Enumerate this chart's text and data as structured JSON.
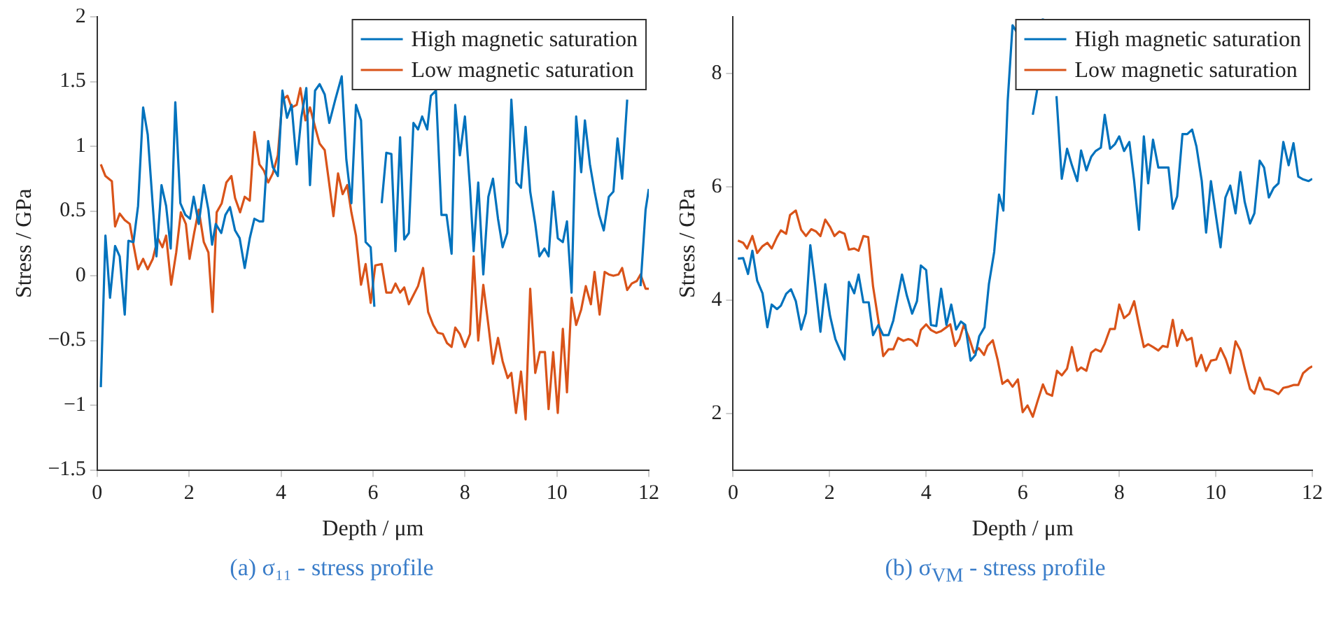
{
  "chart_data": [
    {
      "type": "line",
      "xlabel": "Depth / μm",
      "ylabel": "Stress / GPa",
      "xlim": [
        0,
        12
      ],
      "xticks": [
        0,
        2,
        4,
        6,
        8,
        10,
        12
      ],
      "ylim": [
        -1.5,
        2
      ],
      "yticks": [
        -1.5,
        -1,
        -0.5,
        0,
        0.5,
        1,
        1.5,
        2
      ],
      "legend": "top right",
      "marker": "none",
      "annotations": [
        "(a) σ₁₁ - stress profile"
      ],
      "series": [
        {
          "name": "High magnetic saturation",
          "color": "#0072bd",
          "x": [
            0.08,
            0.18,
            0.28,
            0.39,
            0.49,
            0.6,
            0.68,
            0.79,
            0.89,
            1.0,
            1.1,
            1.21,
            1.29,
            1.4,
            1.5,
            1.6,
            1.7,
            1.81,
            1.92,
            2.02,
            2.1,
            2.21,
            2.32,
            2.42,
            2.5,
            2.58,
            2.7,
            2.79,
            2.89,
            3.0,
            3.1,
            3.21,
            3.32,
            3.42,
            3.53,
            3.61,
            3.72,
            3.82,
            3.93,
            4.03,
            4.13,
            4.23,
            4.34,
            4.44,
            4.55,
            4.63,
            4.74,
            4.84,
            4.95,
            5.05,
            5.18,
            5.32,
            5.42,
            5.53,
            5.63,
            5.74,
            5.84,
            5.95,
            6.03,
            6.08,
            6.19,
            6.29,
            6.4,
            6.49,
            6.59,
            6.68,
            6.78,
            6.88,
            6.98,
            7.07,
            7.18,
            7.26,
            7.37,
            7.49,
            7.6,
            7.71,
            7.79,
            7.89,
            8.0,
            8.11,
            8.19,
            8.29,
            8.4,
            8.51,
            8.61,
            8.72,
            8.82,
            8.92,
            9.01,
            9.12,
            9.22,
            9.32,
            9.42,
            9.53,
            9.62,
            9.73,
            9.82,
            9.92,
            10.02,
            10.13,
            10.22,
            10.32,
            10.42,
            10.53,
            10.61,
            10.72,
            10.82,
            10.92,
            11.02,
            11.13,
            11.23,
            11.32,
            11.42,
            11.53,
            11.61,
            11.72,
            11.82,
            11.93,
            12.0
          ],
          "values": [
            -0.86,
            0.31,
            -0.17,
            0.23,
            0.15,
            -0.3,
            0.27,
            0.26,
            0.54,
            1.3,
            1.09,
            0.54,
            0.15,
            0.7,
            0.54,
            0.21,
            1.34,
            0.56,
            0.47,
            0.44,
            0.61,
            0.4,
            0.7,
            0.51,
            0.24,
            0.4,
            0.33,
            0.47,
            0.53,
            0.35,
            0.29,
            0.06,
            0.29,
            0.44,
            0.42,
            0.42,
            1.04,
            0.84,
            0.77,
            1.43,
            1.22,
            1.32,
            0.86,
            1.22,
            1.45,
            0.7,
            1.43,
            1.48,
            1.4,
            1.18,
            1.36,
            1.54,
            0.9,
            0.56,
            1.32,
            1.2,
            0.26,
            0.22,
            -0.24,
            null,
            0.56,
            0.95,
            0.94,
            0.19,
            1.07,
            0.28,
            0.33,
            1.18,
            1.13,
            1.23,
            1.13,
            1.39,
            1.43,
            0.47,
            0.47,
            0.17,
            1.32,
            0.93,
            1.23,
            0.68,
            0.19,
            0.72,
            0.01,
            0.61,
            0.75,
            0.44,
            0.22,
            0.33,
            1.36,
            0.72,
            0.68,
            1.15,
            0.65,
            0.4,
            0.15,
            0.21,
            0.15,
            0.65,
            0.29,
            0.26,
            0.42,
            -0.13,
            1.23,
            0.8,
            1.2,
            0.86,
            0.65,
            0.47,
            0.35,
            0.61,
            0.65,
            1.06,
            0.75,
            1.36,
            null,
            null,
            -0.08,
            0.51,
            0.67
          ]
        },
        {
          "name": "Low magnetic saturation",
          "color": "#d95319",
          "x": [
            0.08,
            0.18,
            0.32,
            0.39,
            0.49,
            0.6,
            0.71,
            0.79,
            0.89,
            1.0,
            1.1,
            1.21,
            1.32,
            1.42,
            1.5,
            1.61,
            1.72,
            1.82,
            1.93,
            2.01,
            2.11,
            2.21,
            2.32,
            2.42,
            2.51,
            2.6,
            2.71,
            2.81,
            2.92,
            3.0,
            3.11,
            3.21,
            3.32,
            3.42,
            3.53,
            3.63,
            3.72,
            3.82,
            3.93,
            4.03,
            4.14,
            4.23,
            4.34,
            4.42,
            4.53,
            4.63,
            4.74,
            4.84,
            4.95,
            5.03,
            5.14,
            5.24,
            5.34,
            5.44,
            5.53,
            5.63,
            5.74,
            5.84,
            5.95,
            6.05,
            6.19,
            6.29,
            6.4,
            6.49,
            6.59,
            6.68,
            6.78,
            6.88,
            6.98,
            7.09,
            7.2,
            7.31,
            7.41,
            7.52,
            7.61,
            7.71,
            7.79,
            7.89,
            8.0,
            8.11,
            8.19,
            8.29,
            8.4,
            8.51,
            8.61,
            8.72,
            8.82,
            8.93,
            9.01,
            9.11,
            9.22,
            9.32,
            9.42,
            9.53,
            9.63,
            9.74,
            9.82,
            9.92,
            10.02,
            10.13,
            10.22,
            10.32,
            10.42,
            10.53,
            10.63,
            10.74,
            10.82,
            10.93,
            11.04,
            11.13,
            11.23,
            11.34,
            11.42,
            11.53,
            11.63,
            11.74,
            11.82,
            11.93,
            12.0
          ],
          "values": [
            0.86,
            0.77,
            0.73,
            0.38,
            0.48,
            0.43,
            0.4,
            0.24,
            0.05,
            0.13,
            0.05,
            0.13,
            0.29,
            0.22,
            0.31,
            -0.07,
            0.18,
            0.49,
            0.4,
            0.13,
            0.33,
            0.51,
            0.26,
            0.18,
            -0.28,
            0.49,
            0.56,
            0.72,
            0.77,
            0.6,
            0.49,
            0.61,
            0.58,
            1.11,
            0.86,
            0.81,
            0.72,
            0.79,
            0.93,
            1.36,
            1.39,
            1.3,
            1.32,
            1.45,
            1.2,
            1.3,
            1.15,
            1.02,
            0.97,
            0.76,
            0.46,
            0.79,
            0.63,
            0.7,
            0.49,
            0.31,
            -0.07,
            0.09,
            -0.21,
            0.08,
            0.09,
            -0.13,
            -0.13,
            -0.06,
            -0.13,
            -0.09,
            -0.22,
            -0.15,
            -0.08,
            0.06,
            -0.28,
            -0.38,
            -0.44,
            -0.45,
            -0.52,
            -0.55,
            -0.4,
            -0.45,
            -0.55,
            -0.45,
            0.15,
            -0.5,
            -0.07,
            -0.38,
            -0.68,
            -0.48,
            -0.66,
            -0.79,
            -0.75,
            -1.06,
            -0.74,
            -1.11,
            -0.1,
            -0.75,
            -0.59,
            -0.59,
            -1.03,
            -0.59,
            -1.06,
            -0.41,
            -0.9,
            -0.17,
            -0.38,
            -0.26,
            -0.08,
            -0.22,
            0.03,
            -0.3,
            0.03,
            0.01,
            0.0,
            0.01,
            0.06,
            -0.11,
            -0.06,
            -0.04,
            0.01,
            -0.1,
            -0.1
          ]
        }
      ]
    },
    {
      "type": "line",
      "xlabel": "Depth / μm",
      "ylabel": "Stress / GPa",
      "xlim": [
        0,
        12
      ],
      "xticks": [
        0,
        2,
        4,
        6,
        8,
        10,
        12
      ],
      "ylim": [
        1,
        9
      ],
      "yticks": [
        2,
        4,
        6,
        8
      ],
      "legend": "top right",
      "marker": "none",
      "annotations": [
        "(b) σ$_{VM}$ - stress profile"
      ],
      "series": [
        {
          "name": "High magnetic saturation",
          "color": "#0072bd",
          "x": [
            0.1,
            0.21,
            0.31,
            0.4,
            0.5,
            0.61,
            0.71,
            0.8,
            0.91,
            0.99,
            1.1,
            1.2,
            1.3,
            1.41,
            1.51,
            1.6,
            1.7,
            1.81,
            1.91,
            2.01,
            2.12,
            2.22,
            2.31,
            2.4,
            2.51,
            2.6,
            2.7,
            2.81,
            2.9,
            3.01,
            3.11,
            3.22,
            3.32,
            3.4,
            3.5,
            3.6,
            3.71,
            3.81,
            3.89,
            4.0,
            4.1,
            4.21,
            4.31,
            4.42,
            4.52,
            4.62,
            4.72,
            4.81,
            4.92,
            5.02,
            5.1,
            5.21,
            5.3,
            5.41,
            5.51,
            5.6,
            5.69,
            5.79,
            5.9,
            6.05,
            6.16,
            6.21,
            6.31,
            6.42,
            6.55,
            6.7,
            6.81,
            6.92,
            7.02,
            7.13,
            7.21,
            7.32,
            7.42,
            7.51,
            7.62,
            7.7,
            7.81,
            7.91,
            8.0,
            8.1,
            8.21,
            8.31,
            8.41,
            8.51,
            8.6,
            8.7,
            8.81,
            8.92,
            9.02,
            9.11,
            9.2,
            9.31,
            9.41,
            9.51,
            9.6,
            9.71,
            9.8,
            9.9,
            10.01,
            10.1,
            10.2,
            10.3,
            10.41,
            10.51,
            10.6,
            10.71,
            10.8,
            10.91,
            11.0,
            11.1,
            11.2,
            11.3,
            11.4,
            11.51,
            11.61,
            11.71,
            11.81,
            11.92,
            12.0
          ],
          "values": [
            4.73,
            4.74,
            4.46,
            4.87,
            4.34,
            4.12,
            3.52,
            3.92,
            3.84,
            3.9,
            4.11,
            4.19,
            3.98,
            3.48,
            3.77,
            4.97,
            4.28,
            3.44,
            4.28,
            3.72,
            3.31,
            3.11,
            2.95,
            4.32,
            4.12,
            4.45,
            3.96,
            3.96,
            3.38,
            3.56,
            3.38,
            3.38,
            3.64,
            4.0,
            4.45,
            4.08,
            3.76,
            3.98,
            4.61,
            4.53,
            3.56,
            3.54,
            4.2,
            3.56,
            3.92,
            3.48,
            3.62,
            3.56,
            2.93,
            3.03,
            3.36,
            3.52,
            4.28,
            4.85,
            5.86,
            5.58,
            7.52,
            8.85,
            8.7,
            null,
            null,
            7.27,
            7.76,
            8.97,
            null,
            7.6,
            6.14,
            6.67,
            6.38,
            6.1,
            6.64,
            6.29,
            6.53,
            6.63,
            6.69,
            7.27,
            6.67,
            6.75,
            6.89,
            6.63,
            6.79,
            6.1,
            5.24,
            6.89,
            6.06,
            6.83,
            6.34,
            6.34,
            6.34,
            5.61,
            5.83,
            6.93,
            6.93,
            7.01,
            6.71,
            6.1,
            5.19,
            6.1,
            5.45,
            4.93,
            5.81,
            6.02,
            5.53,
            6.26,
            5.73,
            5.35,
            5.53,
            6.46,
            6.34,
            5.81,
            5.98,
            6.06,
            6.79,
            6.38,
            6.77,
            6.18,
            6.13,
            6.1,
            6.14
          ]
        },
        {
          "name": "Low magnetic saturation",
          "color": "#d95319",
          "x": [
            0.1,
            0.21,
            0.29,
            0.4,
            0.5,
            0.61,
            0.71,
            0.8,
            0.91,
            0.99,
            1.1,
            1.18,
            1.3,
            1.41,
            1.51,
            1.62,
            1.72,
            1.81,
            1.91,
            2.01,
            2.1,
            2.2,
            2.31,
            2.4,
            2.51,
            2.6,
            2.7,
            2.8,
            2.9,
            3.01,
            3.11,
            3.22,
            3.32,
            3.42,
            3.53,
            3.63,
            3.71,
            3.81,
            3.89,
            4.0,
            4.1,
            4.21,
            4.31,
            4.42,
            4.5,
            4.6,
            4.69,
            4.78,
            4.89,
            4.99,
            5.09,
            5.2,
            5.27,
            5.38,
            5.48,
            5.58,
            5.69,
            5.79,
            5.9,
            6.0,
            6.1,
            6.21,
            6.31,
            6.42,
            6.5,
            6.61,
            6.71,
            6.81,
            6.92,
            7.02,
            7.13,
            7.21,
            7.32,
            7.42,
            7.51,
            7.62,
            7.7,
            7.81,
            7.91,
            8.0,
            8.1,
            8.21,
            8.31,
            8.41,
            8.51,
            8.6,
            8.7,
            8.81,
            8.9,
            9.0,
            9.11,
            9.2,
            9.3,
            9.4,
            9.5,
            9.6,
            9.7,
            9.8,
            9.9,
            10.01,
            10.1,
            10.21,
            10.3,
            10.41,
            10.51,
            10.6,
            10.71,
            10.8,
            10.91,
            11.01,
            11.11,
            11.2,
            11.3,
            11.4,
            11.51,
            11.61,
            11.71,
            11.81,
            11.92,
            12.0
          ],
          "values": [
            5.05,
            5.01,
            4.91,
            5.13,
            4.83,
            4.95,
            5.01,
            4.91,
            5.11,
            5.23,
            5.17,
            5.5,
            5.58,
            5.24,
            5.13,
            5.25,
            5.21,
            5.13,
            5.42,
            5.29,
            5.13,
            5.21,
            5.17,
            4.89,
            4.91,
            4.87,
            5.13,
            5.11,
            4.24,
            3.64,
            3.01,
            3.13,
            3.13,
            3.33,
            3.28,
            3.31,
            3.29,
            3.19,
            3.47,
            3.57,
            3.47,
            3.42,
            3.45,
            3.52,
            3.57,
            3.19,
            3.31,
            3.56,
            3.33,
            3.07,
            3.15,
            3.03,
            3.19,
            3.29,
            2.95,
            2.52,
            2.59,
            2.47,
            2.6,
            2.02,
            2.14,
            1.94,
            2.22,
            2.51,
            2.35,
            2.31,
            2.75,
            2.67,
            2.79,
            3.17,
            2.75,
            2.81,
            2.75,
            3.07,
            3.13,
            3.09,
            3.23,
            3.49,
            3.49,
            3.92,
            3.68,
            3.76,
            3.98,
            3.56,
            3.17,
            3.22,
            3.17,
            3.11,
            3.19,
            3.17,
            3.65,
            3.19,
            3.47,
            3.29,
            3.33,
            2.83,
            3.03,
            2.75,
            2.93,
            2.95,
            3.15,
            2.95,
            2.71,
            3.27,
            3.11,
            2.79,
            2.43,
            2.35,
            2.63,
            2.43,
            2.42,
            2.39,
            2.34,
            2.45,
            2.47,
            2.5,
            2.5,
            2.71,
            2.79,
            2.83
          ]
        }
      ]
    }
  ]
}
